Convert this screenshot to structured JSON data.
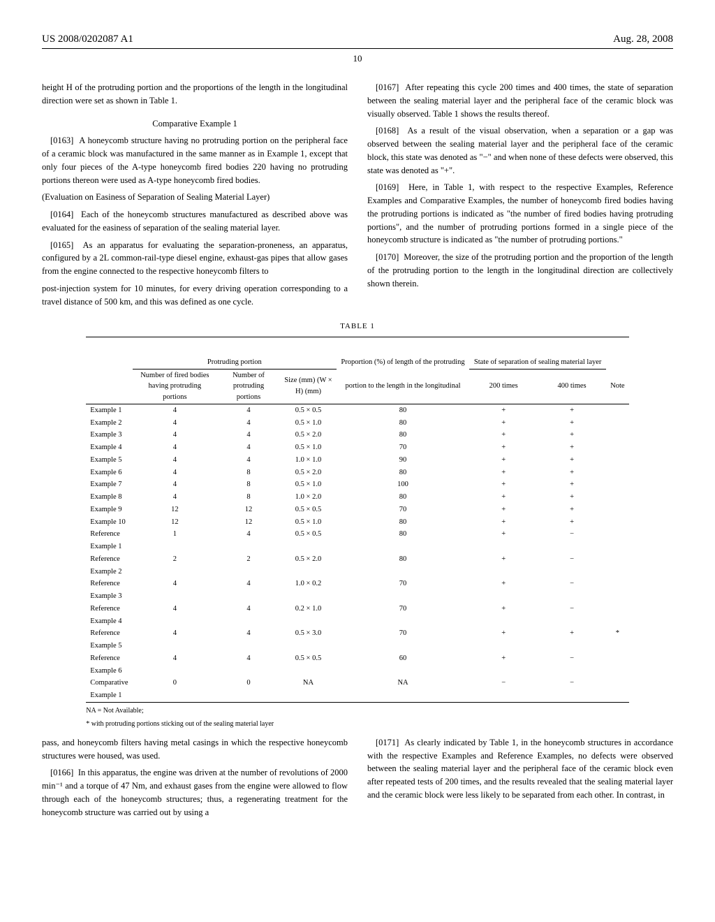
{
  "header": {
    "pub_number": "US 2008/0202087 A1",
    "date": "Aug. 28, 2008",
    "page_number": "10"
  },
  "paragraphs": {
    "p_intro": "height H of the protruding portion and the proportions of the length in the longitudinal direction were set as shown in Table 1.",
    "comp_title": "Comparative Example 1",
    "p0163_num": "[0163]",
    "p0163": "A honeycomb structure having no protruding portion on the peripheral face of a ceramic block was manufactured in the same manner as in Example 1, except that only four pieces of the A-type honeycomb fired bodies 220 having no protruding portions thereon were used as A-type honeycomb fired bodies.",
    "eval_heading": "(Evaluation on Easiness of Separation of Sealing Material Layer)",
    "p0164_num": "[0164]",
    "p0164": "Each of the honeycomb structures manufactured as described above was evaluated for the easiness of separation of the sealing material layer.",
    "p0165_num": "[0165]",
    "p0165": "As an apparatus for evaluating the separation-proneness, an apparatus, configured by a 2L common-rail-type diesel engine, exhaust-gas pipes that allow gases from the engine connected to the respective honeycomb filters to",
    "p_right1": "post-injection system for 10 minutes, for every driving operation corresponding to a travel distance of 500 km, and this was defined as one cycle.",
    "p0167_num": "[0167]",
    "p0167": "After repeating this cycle 200 times and 400 times, the state of separation between the sealing material layer and the peripheral face of the ceramic block was visually observed. Table 1 shows the results thereof.",
    "p0168_num": "[0168]",
    "p0168": "As a result of the visual observation, when a separation or a gap was observed between the sealing material layer and the peripheral face of the ceramic block, this state was denoted as \"−\" and when none of these defects were observed, this state was denoted as \"+\".",
    "p0169_num": "[0169]",
    "p0169": "Here, in Table 1, with respect to the respective Examples, Reference Examples and Comparative Examples, the number of honeycomb fired bodies having the protruding portions is indicated as \"the number of fired bodies having protruding portions\", and the number of protruding portions formed in a single piece of the honeycomb structure is indicated as \"the number of protruding portions.\"",
    "p0170_num": "[0170]",
    "p0170": "Moreover, the size of the protruding portion and the proportion of the length of the protruding portion to the length in the longitudinal direction are collectively shown therein.",
    "p_pass": "pass, and honeycomb filters having metal casings in which the respective honeycomb structures were housed, was used.",
    "p0166_num": "[0166]",
    "p0166": "In this apparatus, the engine was driven at the number of revolutions of 2000 min⁻¹ and a torque of 47 Nm, and exhaust gases from the engine were allowed to flow through each of the honeycomb structures; thus, a regenerating treatment for the honeycomb structure was carried out by using a",
    "p0171_num": "[0171]",
    "p0171": "As clearly indicated by Table 1, in the honeycomb structures in accordance with the respective Examples and Reference Examples, no defects were observed between the sealing material layer and the peripheral face of the ceramic block even after repeated tests of 200 times, and the results revealed that the sealing material layer and the ceramic block were less likely to be separated from each other. In contrast, in"
  },
  "table": {
    "title": "TABLE 1",
    "headers": {
      "protruding": "Protruding portion",
      "fired_bodies": "Number of fired bodies having protruding portions",
      "num_portions": "Number of protruding portions",
      "size": "Size (mm) (W × H) (mm)",
      "proportion": "Proportion (%) of length of the protruding",
      "proportion_sub": "portion to the length in the longitudinal",
      "state": "State of separation of sealing material layer",
      "t200": "200 times",
      "t400": "400 times",
      "note": "Note"
    },
    "rows": [
      {
        "label": "Example 1",
        "c1": "4",
        "c2": "4",
        "c3": "0.5 × 0.5",
        "c4": "80",
        "c5": "+",
        "c6": "+",
        "c7": ""
      },
      {
        "label": "Example 2",
        "c1": "4",
        "c2": "4",
        "c3": "0.5 × 1.0",
        "c4": "80",
        "c5": "+",
        "c6": "+",
        "c7": ""
      },
      {
        "label": "Example 3",
        "c1": "4",
        "c2": "4",
        "c3": "0.5 × 2.0",
        "c4": "80",
        "c5": "+",
        "c6": "+",
        "c7": ""
      },
      {
        "label": "Example 4",
        "c1": "4",
        "c2": "4",
        "c3": "0.5 × 1.0",
        "c4": "70",
        "c5": "+",
        "c6": "+",
        "c7": ""
      },
      {
        "label": "Example 5",
        "c1": "4",
        "c2": "4",
        "c3": "1.0 × 1.0",
        "c4": "90",
        "c5": "+",
        "c6": "+",
        "c7": ""
      },
      {
        "label": "Example 6",
        "c1": "4",
        "c2": "8",
        "c3": "0.5 × 2.0",
        "c4": "80",
        "c5": "+",
        "c6": "+",
        "c7": ""
      },
      {
        "label": "Example 7",
        "c1": "4",
        "c2": "8",
        "c3": "0.5 × 1.0",
        "c4": "100",
        "c5": "+",
        "c6": "+",
        "c7": ""
      },
      {
        "label": "Example 8",
        "c1": "4",
        "c2": "8",
        "c3": "1.0 × 2.0",
        "c4": "80",
        "c5": "+",
        "c6": "+",
        "c7": ""
      },
      {
        "label": "Example 9",
        "c1": "12",
        "c2": "12",
        "c3": "0.5 × 0.5",
        "c4": "70",
        "c5": "+",
        "c6": "+",
        "c7": ""
      },
      {
        "label": "Example 10",
        "c1": "12",
        "c2": "12",
        "c3": "0.5 × 1.0",
        "c4": "80",
        "c5": "+",
        "c6": "+",
        "c7": ""
      },
      {
        "label": "Reference Example 1",
        "c1": "1",
        "c2": "4",
        "c3": "0.5 × 0.5",
        "c4": "80",
        "c5": "+",
        "c6": "−",
        "c7": ""
      },
      {
        "label": "Reference Example 2",
        "c1": "2",
        "c2": "2",
        "c3": "0.5 × 2.0",
        "c4": "80",
        "c5": "+",
        "c6": "−",
        "c7": ""
      },
      {
        "label": "Reference Example 3",
        "c1": "4",
        "c2": "4",
        "c3": "1.0 × 0.2",
        "c4": "70",
        "c5": "+",
        "c6": "−",
        "c7": ""
      },
      {
        "label": "Reference Example 4",
        "c1": "4",
        "c2": "4",
        "c3": "0.2 × 1.0",
        "c4": "70",
        "c5": "+",
        "c6": "−",
        "c7": ""
      },
      {
        "label": "Reference Example 5",
        "c1": "4",
        "c2": "4",
        "c3": "0.5 × 3.0",
        "c4": "70",
        "c5": "+",
        "c6": "+",
        "c7": "*"
      },
      {
        "label": "Reference Example 6",
        "c1": "4",
        "c2": "4",
        "c3": "0.5 × 0.5",
        "c4": "60",
        "c5": "+",
        "c6": "−",
        "c7": ""
      },
      {
        "label": "Comparative Example 1",
        "c1": "0",
        "c2": "0",
        "c3": "NA",
        "c4": "NA",
        "c5": "−",
        "c6": "−",
        "c7": ""
      }
    ],
    "footnotes": {
      "f1": "NA = Not Available;",
      "f2": "* with protruding portions sticking out of the sealing material layer"
    }
  }
}
